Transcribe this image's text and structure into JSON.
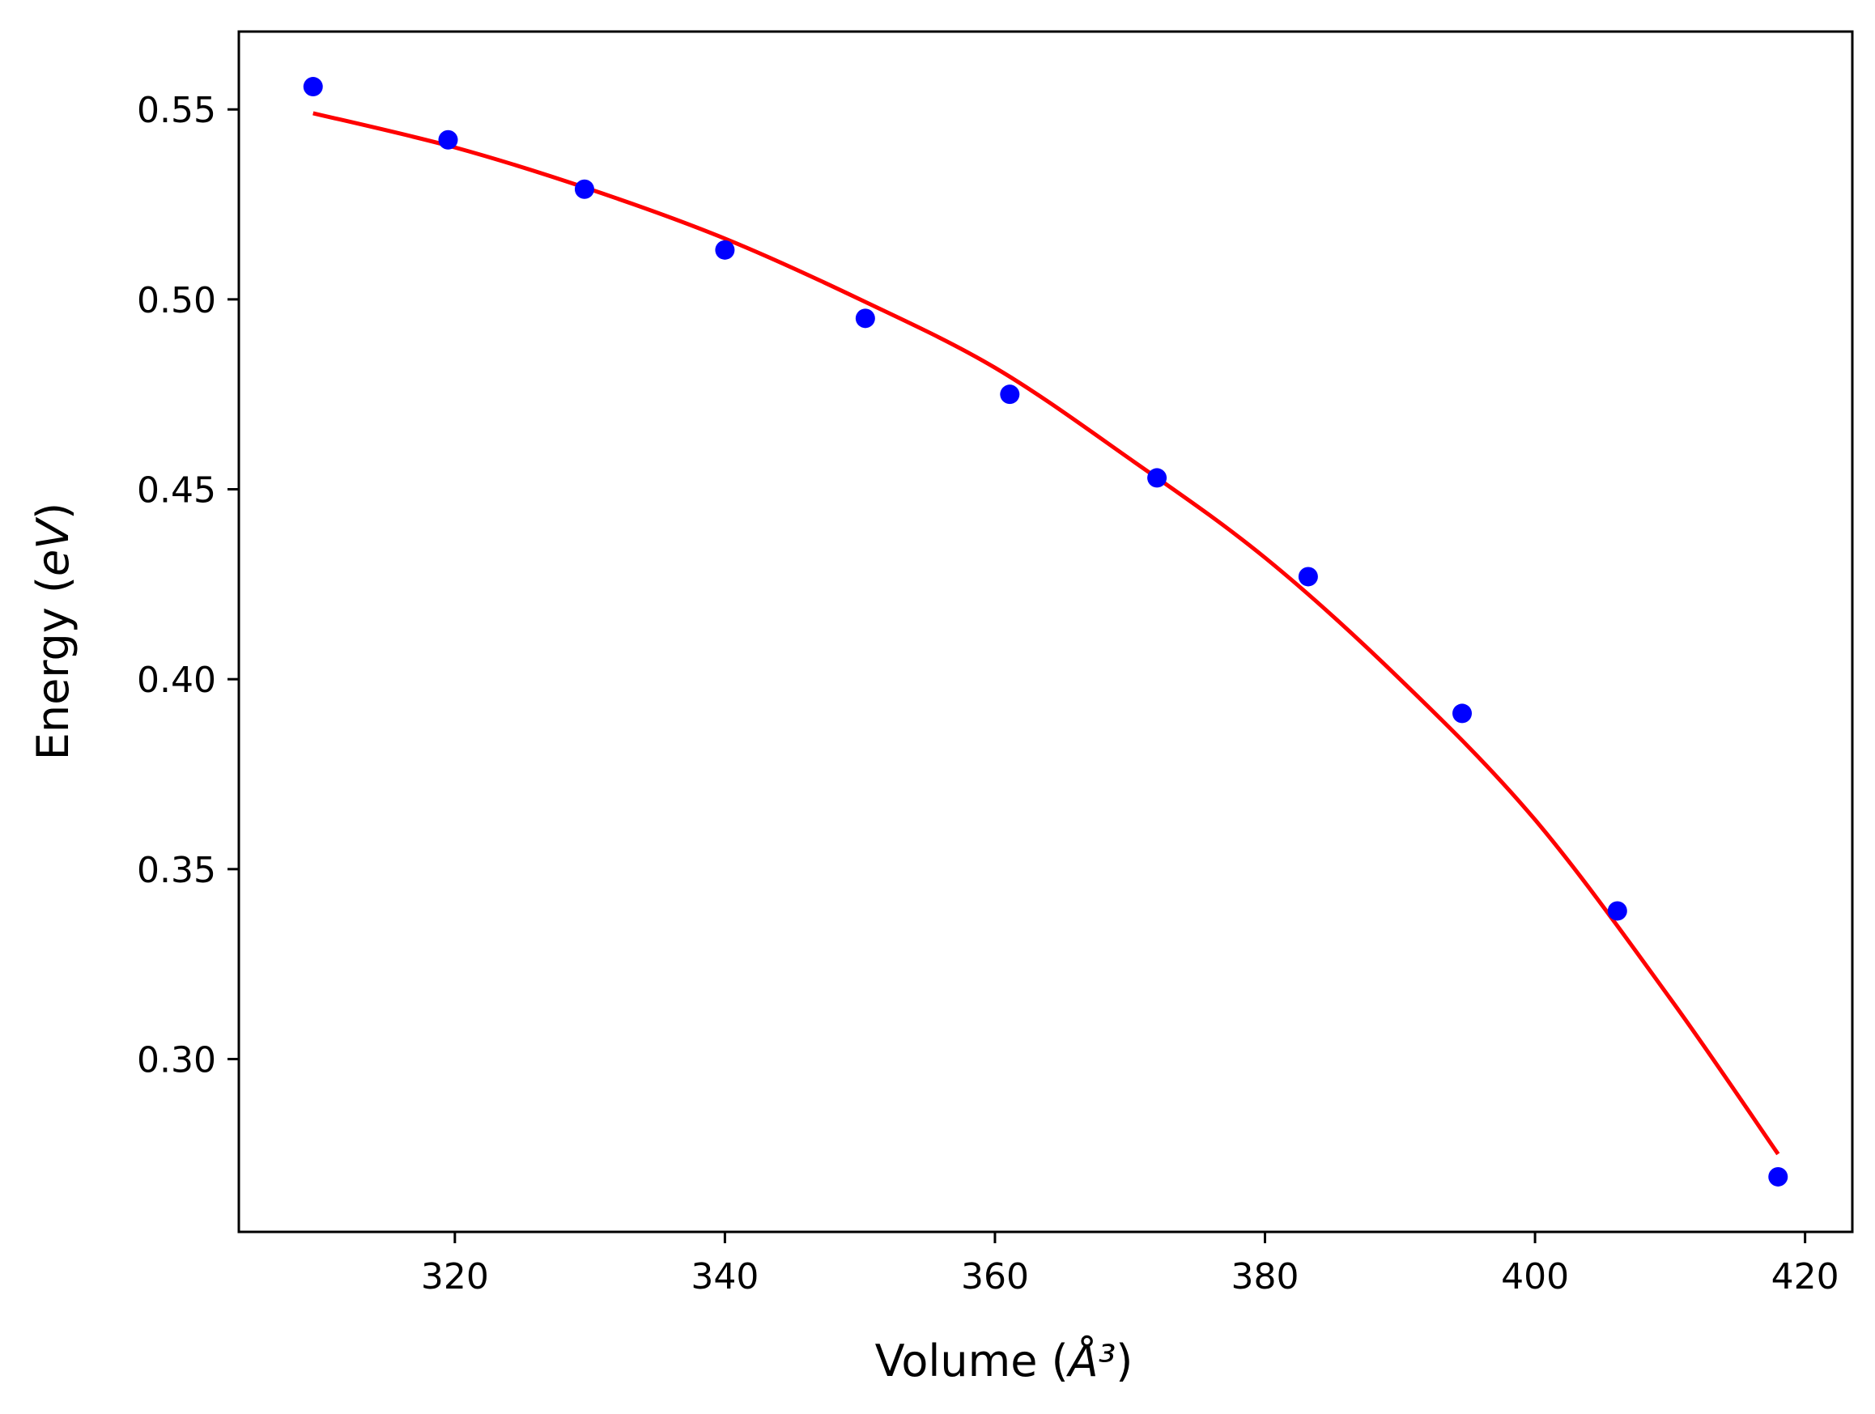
{
  "chart_data": {
    "type": "scatter",
    "title": "",
    "xlabel": "Volume (Å³)",
    "ylabel": "Energy (eV)",
    "xlim": [
      304,
      423.5
    ],
    "ylim": [
      0.2545,
      0.5705
    ],
    "xticks": [
      320,
      340,
      360,
      380,
      400,
      420
    ],
    "yticks": [
      0.3,
      0.35,
      0.4,
      0.45,
      0.5,
      0.55
    ],
    "xtick_labels": [
      "320",
      "340",
      "360",
      "380",
      "400",
      "420"
    ],
    "ytick_labels": [
      "0.30",
      "0.35",
      "0.40",
      "0.45",
      "0.50",
      "0.55"
    ],
    "grid": false,
    "legend": "none",
    "series": [
      {
        "kind": "points",
        "color": "#0000ff",
        "x": [
          309.5,
          319.5,
          329.6,
          340.0,
          350.4,
          361.1,
          372.0,
          383.2,
          394.6,
          406.1,
          418.0
        ],
        "y": [
          0.556,
          0.542,
          0.529,
          0.513,
          0.495,
          0.475,
          0.453,
          0.427,
          0.391,
          0.339,
          0.269
        ]
      },
      {
        "kind": "line",
        "color": "#ff0000",
        "x": [
          309.5,
          320,
          330,
          340,
          350,
          360,
          370,
          380,
          390,
          400,
          410,
          418
        ],
        "y": [
          0.549,
          0.54,
          0.529,
          0.516,
          0.5,
          0.482,
          0.458,
          0.432,
          0.4,
          0.363,
          0.316,
          0.275
        ]
      }
    ]
  }
}
